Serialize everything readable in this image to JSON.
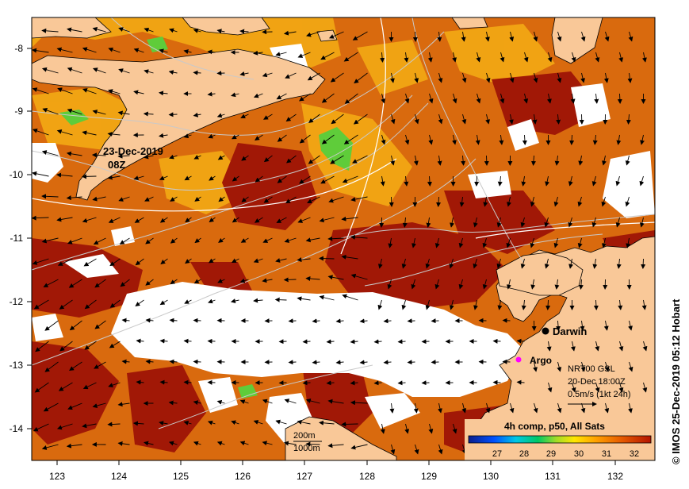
{
  "map": {
    "date_label_line1": "23-Dec-2019",
    "date_label_line2": "08Z",
    "x_ticks": [
      "123",
      "124",
      "125",
      "126",
      "127",
      "128",
      "129",
      "130",
      "131",
      "132"
    ],
    "y_ticks": [
      "-8",
      "-9",
      "-10",
      "-11",
      "-12",
      "-13",
      "-14"
    ],
    "places": [
      {
        "name": "Darwin",
        "marker_color": "#000000"
      },
      {
        "name": "Argo",
        "marker_color": "#ff00ff"
      }
    ],
    "current_key": {
      "line1": "NRT00 GSL",
      "line2": "20-Dec 18:00Z",
      "line3": "0.5m/s (1kt 24h)"
    },
    "isobaths": [
      "200m",
      "1000m"
    ],
    "colorbar": {
      "title": "4h comp, p50, All Sats",
      "ticks": [
        "27",
        "28",
        "29",
        "30",
        "31",
        "32"
      ],
      "colors": [
        "#0a1e8c",
        "#0050ff",
        "#00c8e6",
        "#00c864",
        "#a0dc28",
        "#ffe600",
        "#ffa000",
        "#e65a00",
        "#b41400"
      ]
    },
    "credit": "© IMOS 25-Dec-2019 05:12 Hobart",
    "colors": {
      "land": "#f9c898",
      "sst_main": "#d96a0e",
      "sst_warm": "#a11806",
      "sst_cool": "#f3aa14",
      "sst_green": "#5fcc3a",
      "contour": "#c9c9c9"
    }
  }
}
